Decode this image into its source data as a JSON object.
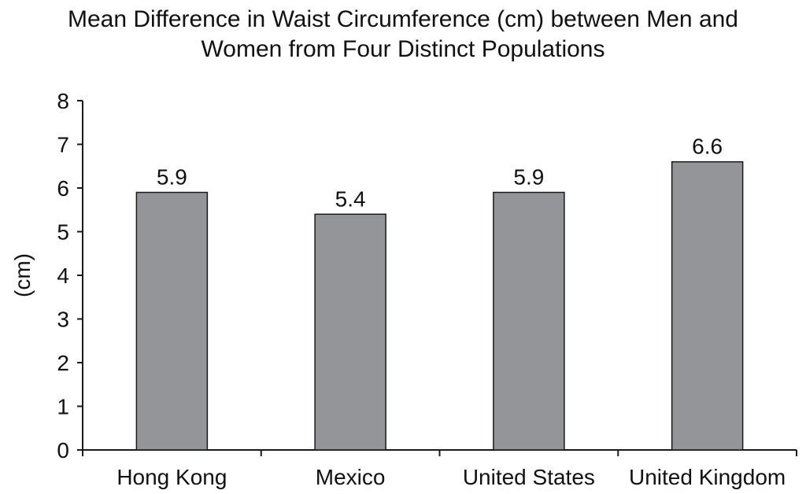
{
  "chart_data": {
    "type": "bar",
    "title": "Mean Difference in Waist Circumference (cm) between Men and\nWomen from Four Distinct Populations",
    "ylabel": "(cm)",
    "xlabel": "",
    "categories": [
      "Hong Kong",
      "Mexico",
      "United States",
      "United Kingdom"
    ],
    "values": [
      5.9,
      5.4,
      5.9,
      6.6
    ],
    "value_labels": [
      "5.9",
      "5.4",
      "5.9",
      "6.6"
    ],
    "ylim": [
      0,
      8
    ],
    "yticks": [
      0,
      1,
      2,
      3,
      4,
      5,
      6,
      7,
      8
    ],
    "grid": false,
    "legend": "none",
    "colors": {
      "bar_fill": "#939598",
      "bar_stroke": "#1a1a1a",
      "axis": "#1a1a1a"
    }
  }
}
